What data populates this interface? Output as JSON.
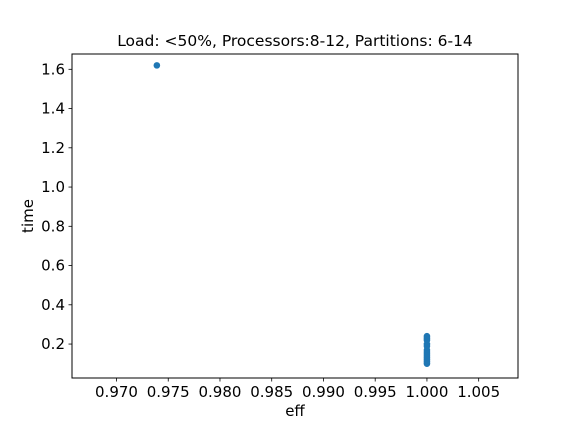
{
  "chart_data": {
    "type": "scatter",
    "title": "Load: <50%, Processors:8-12, Partitions: 6-14",
    "xlabel": "eff",
    "ylabel": "time",
    "xlim": [
      0.9657,
      1.0088
    ],
    "ylim": [
      0.027,
      1.678
    ],
    "x_ticks": [
      "0.970",
      "0.975",
      "0.980",
      "0.985",
      "0.990",
      "0.995",
      "1.000",
      "1.005"
    ],
    "x_tick_values": [
      0.97,
      0.975,
      0.98,
      0.985,
      0.99,
      0.995,
      1.0,
      1.005
    ],
    "y_ticks": [
      "0.2",
      "0.4",
      "0.6",
      "0.8",
      "1.0",
      "1.2",
      "1.4",
      "1.6"
    ],
    "y_tick_values": [
      0.2,
      0.4,
      0.6,
      0.8,
      1.0,
      1.2,
      1.4,
      1.6
    ],
    "grid": false,
    "marker_color": "#1f77b4",
    "points": [
      {
        "x": 0.9739,
        "y": 1.62
      },
      {
        "x": 1.0,
        "y": 0.24
      },
      {
        "x": 1.0,
        "y": 0.23
      },
      {
        "x": 1.0,
        "y": 0.22
      },
      {
        "x": 1.0,
        "y": 0.2
      },
      {
        "x": 1.0,
        "y": 0.19
      },
      {
        "x": 1.0,
        "y": 0.17
      },
      {
        "x": 1.0,
        "y": 0.16
      },
      {
        "x": 1.0,
        "y": 0.15
      },
      {
        "x": 1.0,
        "y": 0.14
      },
      {
        "x": 1.0,
        "y": 0.13
      },
      {
        "x": 1.0,
        "y": 0.12
      },
      {
        "x": 1.0,
        "y": 0.11
      },
      {
        "x": 1.0,
        "y": 0.1
      }
    ]
  }
}
